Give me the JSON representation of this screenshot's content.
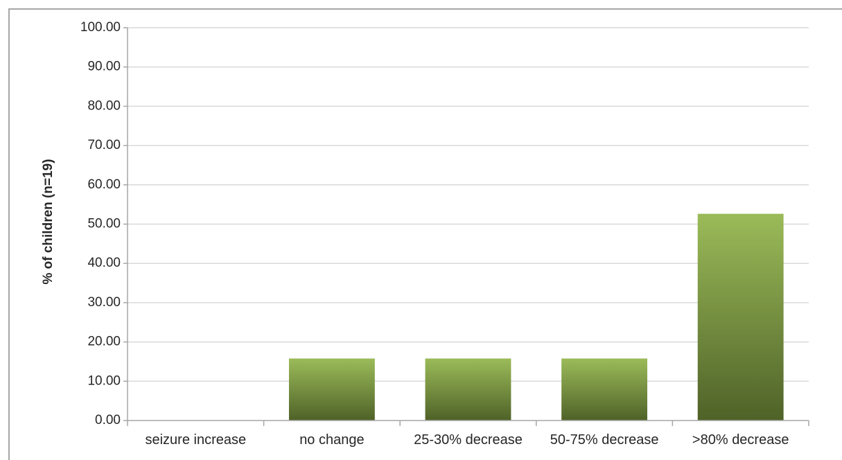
{
  "chart_data": {
    "type": "bar",
    "title": "",
    "xlabel": "",
    "ylabel": "% of children (n=19)",
    "categories": [
      "seizure increase",
      "no change",
      "25-30% decrease",
      "50-75% decrease",
      ">80% decrease"
    ],
    "values": [
      0.0,
      15.79,
      15.79,
      15.79,
      52.63
    ],
    "ylim": [
      0,
      100
    ],
    "yticks": [
      0,
      10,
      20,
      30,
      40,
      50,
      60,
      70,
      80,
      90,
      100
    ],
    "ytick_labels": [
      "0.00",
      "10.00",
      "20.00",
      "30.00",
      "40.00",
      "50.00",
      "60.00",
      "70.00",
      "80.00",
      "90.00",
      "100.00"
    ],
    "grid": true,
    "legend": "none",
    "colors": {
      "bar_top": "#9bbb59",
      "bar_bottom": "#4f6228",
      "grid": "#d9d9d9",
      "axis": "#a6a6a6",
      "frame": "#a6a6a6"
    }
  }
}
